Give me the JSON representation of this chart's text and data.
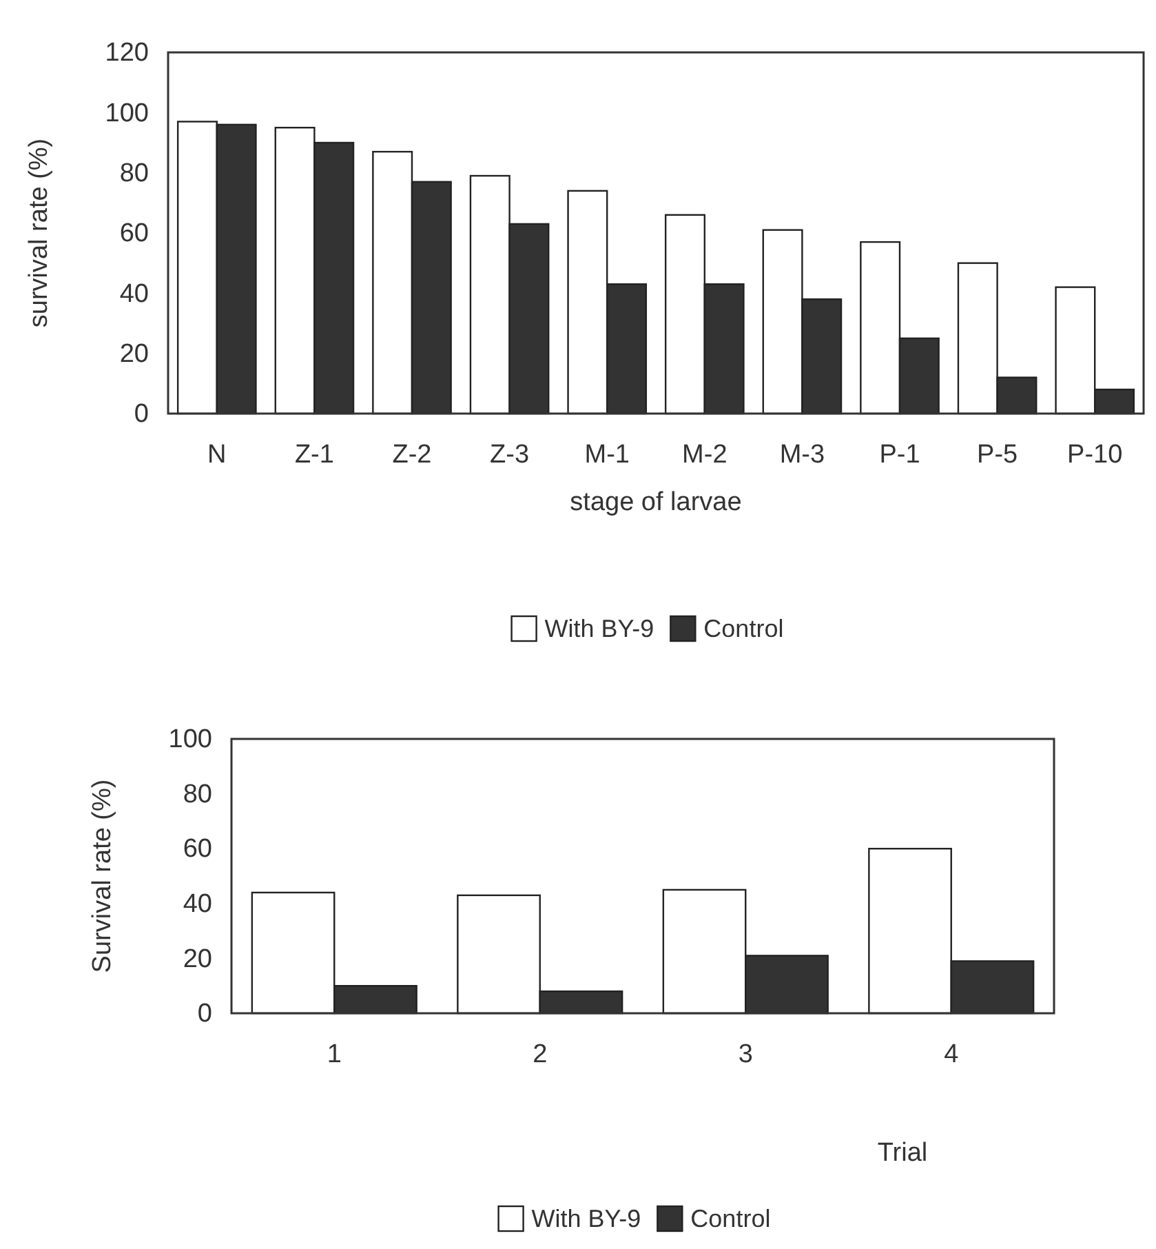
{
  "chart_data": [
    {
      "type": "bar",
      "xlabel": "stage of larvae",
      "ylabel": "survival rate (%)",
      "categories": [
        "N",
        "Z-1",
        "Z-2",
        "Z-3",
        "M-1",
        "M-2",
        "M-3",
        "P-1",
        "P-5",
        "P-10"
      ],
      "series": [
        {
          "name": "With BY-9",
          "color": "#ffffff",
          "values": [
            97,
            95,
            87,
            79,
            74,
            66,
            61,
            57,
            50,
            42
          ]
        },
        {
          "name": "Control",
          "color": "#333333",
          "values": [
            96,
            90,
            77,
            63,
            43,
            43,
            38,
            25,
            12,
            8
          ]
        }
      ],
      "ylim": [
        0,
        120
      ],
      "yticks": [
        0,
        20,
        40,
        60,
        80,
        100,
        120
      ],
      "grid": false,
      "legend": "bottom"
    },
    {
      "type": "bar",
      "xlabel": "Trial",
      "ylabel": "Survival rate (%)",
      "categories": [
        "1",
        "2",
        "3",
        "4"
      ],
      "series": [
        {
          "name": "With BY-9",
          "color": "#ffffff",
          "values": [
            44,
            43,
            45,
            60
          ]
        },
        {
          "name": "Control",
          "color": "#333333",
          "values": [
            10,
            8,
            21,
            19
          ]
        }
      ],
      "ylim": [
        0,
        100
      ],
      "yticks": [
        0,
        20,
        40,
        60,
        80,
        100
      ],
      "grid": false,
      "legend": "bottom"
    }
  ]
}
